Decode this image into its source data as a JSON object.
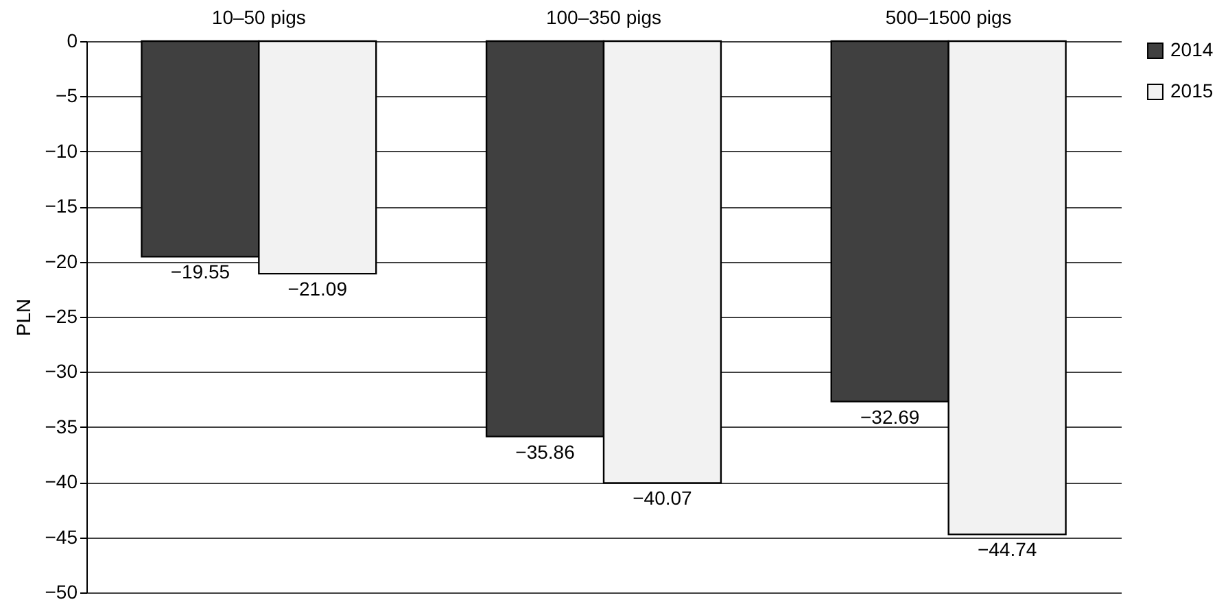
{
  "chart_data": {
    "type": "bar",
    "ylabel": "PLN",
    "categories": [
      "10–50 pigs",
      "100–350 pigs",
      "500–1500 pigs"
    ],
    "series": [
      {
        "name": "2014",
        "color": "#404040",
        "values": [
          -19.55,
          -35.86,
          -32.69
        ]
      },
      {
        "name": "2015",
        "color": "#f2f2f2",
        "values": [
          -21.09,
          -40.07,
          -44.74
        ]
      }
    ],
    "ylim": [
      -50,
      0
    ],
    "yticks": [
      0,
      -5,
      -10,
      -15,
      -20,
      -25,
      -30,
      -35,
      -40,
      -45,
      -50
    ],
    "grid": "y",
    "legend": "right",
    "data_labels": true
  }
}
